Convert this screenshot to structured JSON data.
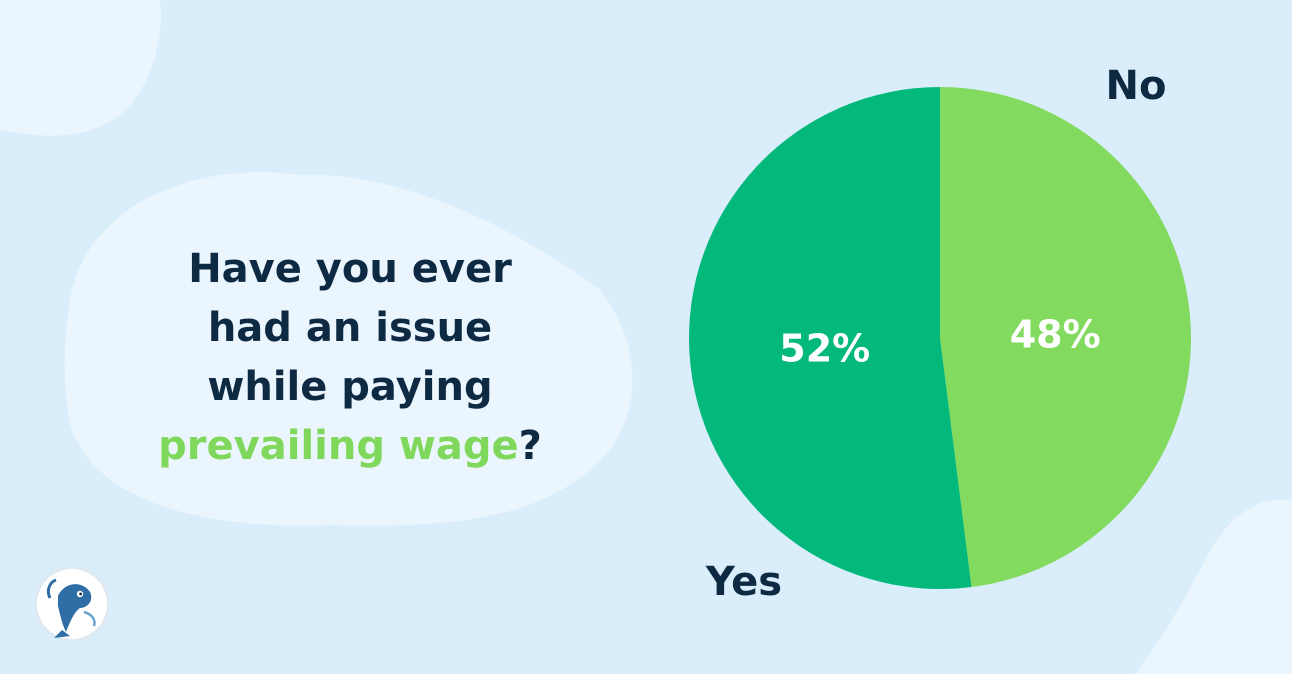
{
  "question": {
    "line1": "Have you ever",
    "line2": "had an issue",
    "line3": "while paying",
    "highlight": "prevailing wage",
    "end_punct": "?"
  },
  "chart_data": {
    "type": "pie",
    "title": "",
    "slices": [
      {
        "label": "No",
        "value": 48,
        "value_label": "48%",
        "color": "#82da5e"
      },
      {
        "label": "Yes",
        "value": 52,
        "value_label": "52%",
        "color": "#02b87a"
      }
    ],
    "start_angle": "12 o'clock",
    "direction": "clockwise",
    "label_placement": "outside",
    "value_label_color": "#ffffff",
    "legend": "none"
  },
  "colors": {
    "background": "#d9edfb",
    "blob": "#eaf5fe",
    "text_dark": "#0e2942",
    "accent": "#7fd85c"
  },
  "logo": {
    "icon": "fish-mascot-icon"
  }
}
